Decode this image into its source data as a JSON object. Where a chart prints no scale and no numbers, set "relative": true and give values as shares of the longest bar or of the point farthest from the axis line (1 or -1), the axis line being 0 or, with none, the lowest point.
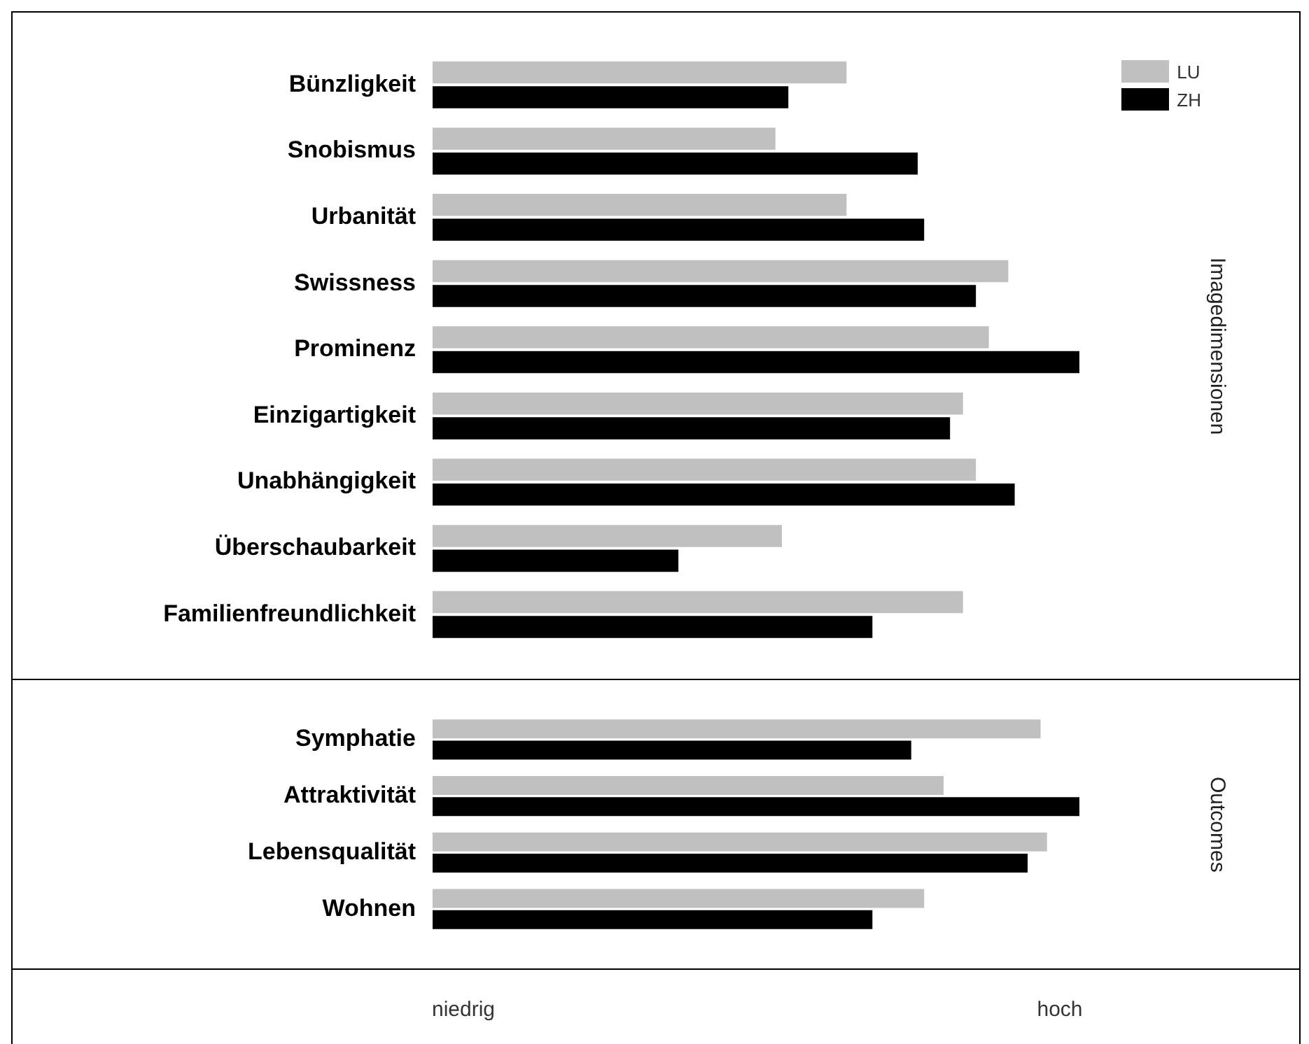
{
  "chart_data": [
    {
      "type": "bar",
      "orientation": "horizontal",
      "relative": true,
      "ylabel": "Imagedimensionen",
      "legend": "top right",
      "categories": [
        "Bünzligkeit",
        "Snobismus",
        "Urbanität",
        "Swissness",
        "Prominenz",
        "Einzigartigkeit",
        "Unabhängigkeit",
        "Überschaubarkeit",
        "Familienfreundlichkeit"
      ],
      "series": [
        {
          "name": "LU",
          "color": "#c0c0c0",
          "values": [
            0.64,
            0.53,
            0.64,
            0.89,
            0.86,
            0.82,
            0.84,
            0.54,
            0.82
          ]
        },
        {
          "name": "ZH",
          "color": "#000000",
          "values": [
            0.55,
            0.75,
            0.76,
            0.84,
            1.0,
            0.8,
            0.9,
            0.38,
            0.68
          ]
        }
      ]
    },
    {
      "type": "bar",
      "orientation": "horizontal",
      "relative": true,
      "ylabel": "Outcomes",
      "categories": [
        "Symphatie",
        "Attraktivität",
        "Lebensqualität",
        "Wohnen"
      ],
      "series": [
        {
          "color": "#c0c0c0",
          "values": [
            0.94,
            0.79,
            0.95,
            0.76
          ]
        },
        {
          "color": "#000000",
          "values": [
            0.74,
            1.0,
            0.92,
            0.68
          ]
        }
      ],
      "annotations": [
        "niedrig",
        "hoch"
      ]
    }
  ]
}
